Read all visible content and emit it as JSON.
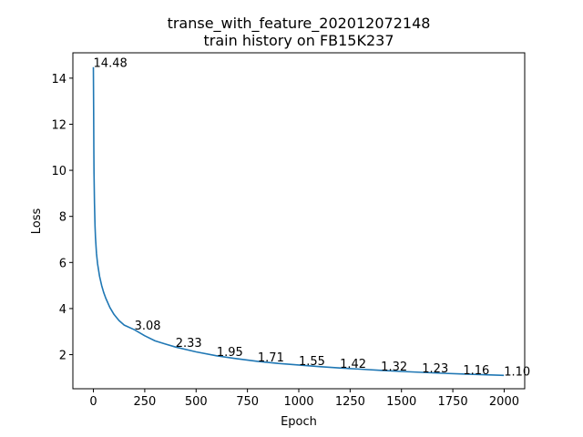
{
  "chart_data": {
    "type": "line",
    "title": "transe_with_feature_202012072148",
    "subtitle": "train history on FB15K237",
    "xlabel": "Epoch",
    "ylabel": "Loss",
    "xlim": [
      -100,
      2100
    ],
    "ylim": [
      0.52,
      15.1
    ],
    "x_ticks": [
      0,
      250,
      500,
      750,
      1000,
      1250,
      1500,
      1750,
      2000
    ],
    "y_ticks": [
      2,
      4,
      6,
      8,
      10,
      12,
      14
    ],
    "grid": false,
    "series": [
      {
        "color": "#1f77b4",
        "x": [
          0,
          1,
          2,
          3,
          5,
          8,
          10,
          15,
          20,
          30,
          40,
          50,
          60,
          80,
          100,
          125,
          150,
          200,
          250,
          300,
          350,
          400,
          500,
          600,
          700,
          800,
          900,
          1000,
          1100,
          1200,
          1300,
          1400,
          1500,
          1600,
          1700,
          1800,
          1900,
          1999
        ],
        "y": [
          14.48,
          12.6,
          11.0,
          9.9,
          8.6,
          7.6,
          7.1,
          6.4,
          5.95,
          5.4,
          5.0,
          4.7,
          4.45,
          4.05,
          3.75,
          3.48,
          3.28,
          3.08,
          2.82,
          2.6,
          2.46,
          2.33,
          2.12,
          1.95,
          1.82,
          1.71,
          1.62,
          1.55,
          1.48,
          1.42,
          1.37,
          1.32,
          1.27,
          1.23,
          1.19,
          1.16,
          1.13,
          1.1
        ]
      }
    ],
    "annotations": [
      {
        "x": 0,
        "y": 14.48,
        "text": "14.48"
      },
      {
        "x": 200,
        "y": 3.08,
        "text": "3.08"
      },
      {
        "x": 400,
        "y": 2.33,
        "text": "2.33"
      },
      {
        "x": 600,
        "y": 1.95,
        "text": "1.95"
      },
      {
        "x": 800,
        "y": 1.71,
        "text": "1.71"
      },
      {
        "x": 1000,
        "y": 1.55,
        "text": "1.55"
      },
      {
        "x": 1200,
        "y": 1.42,
        "text": "1.42"
      },
      {
        "x": 1400,
        "y": 1.32,
        "text": "1.32"
      },
      {
        "x": 1600,
        "y": 1.23,
        "text": "1.23"
      },
      {
        "x": 1800,
        "y": 1.16,
        "text": "1.16"
      },
      {
        "x": 1999,
        "y": 1.1,
        "text": "1.10"
      }
    ]
  }
}
